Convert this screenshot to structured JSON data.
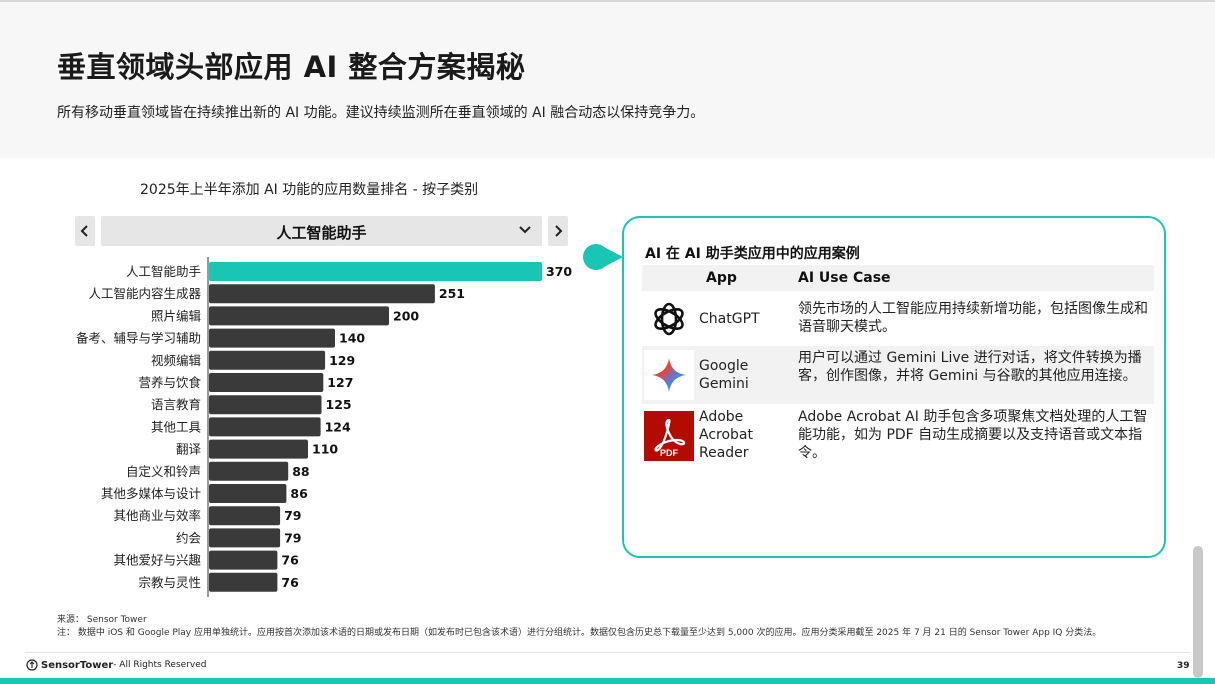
{
  "header": {
    "title": "垂直领域头部应用 AI 整合方案揭秘",
    "subtitle": "所有移动垂直领域皆在持续推出新的 AI 功能。建议持续监测所在垂直领域的 AI 融合动态以保持竞争力。"
  },
  "chart_selector": {
    "selected": "人工智能助手",
    "prev_icon": "chevron-left-icon",
    "next_icon": "chevron-right-icon",
    "dropdown_icon": "chevron-down-icon"
  },
  "chart_data": {
    "type": "bar",
    "orientation": "horizontal",
    "title": "2025年上半年添加 AI 功能的应用数量排名 - 按子类别",
    "categories": [
      "人工智能助手",
      "人工智能内容生成器",
      "照片编辑",
      "备考、辅导与学习辅助",
      "视频编辑",
      "营养与饮食",
      "语言教育",
      "其他工具",
      "翻译",
      "自定义和铃声",
      "其他多媒体与设计",
      "其他商业与效率",
      "约会",
      "其他爱好与兴趣",
      "宗教与灵性"
    ],
    "values": [
      370,
      251,
      200,
      140,
      129,
      127,
      125,
      124,
      110,
      88,
      86,
      79,
      79,
      76,
      76
    ],
    "data_labels": [
      "370",
      "251",
      "200",
      "140",
      "129",
      "127",
      "125",
      "124",
      "110",
      "88",
      "86",
      "79",
      "79",
      "76",
      "76"
    ],
    "highlight_index": 0,
    "colors": {
      "highlight": "#19c5b5",
      "default": "#3a3a3a"
    },
    "xlim": [
      0,
      370
    ]
  },
  "callout": {
    "title": "AI 在 AI 助手类应用中的应用案例",
    "col_app": "App",
    "col_use_case": "AI Use Case",
    "rows": [
      {
        "logo": "chatgpt-logo-icon",
        "app": "ChatGPT",
        "use_case": "领先市场的人工智能应用持续新增功能，包括图像生成和语音聊天模式。"
      },
      {
        "logo": "gemini-logo-icon",
        "app": "Google Gemini",
        "use_case": "用户可以通过 Gemini Live 进行对话，将文件转换为播客，创作图像，并将 Gemini 与谷歌的其他应用连接。"
      },
      {
        "logo": "pdf-logo-icon",
        "app": "Adobe Acrobat Reader",
        "use_case": "Adobe Acrobat AI 助手包含多项聚焦文档处理的人工智能功能，如为 PDF 自动生成摘要以及支持语音或文本指令。"
      }
    ],
    "accent_color": "#19c5b5"
  },
  "footer": {
    "source": "来源： Sensor Tower",
    "note": "注： 数据中 iOS 和 Google Play 应用单独统计。应用按首次添加该术语的日期或发布日期（如发布时已包含该术语）进行分组统计。数据仅包含历史总下载量至少达到 5,000 次的应用。应用分类采用截至 2025 年 7 月 21 日的 Sensor Tower App IQ 分类法。",
    "brand": "SensorTower",
    "rights": " - All Rights Reserved",
    "page_number": "39"
  }
}
